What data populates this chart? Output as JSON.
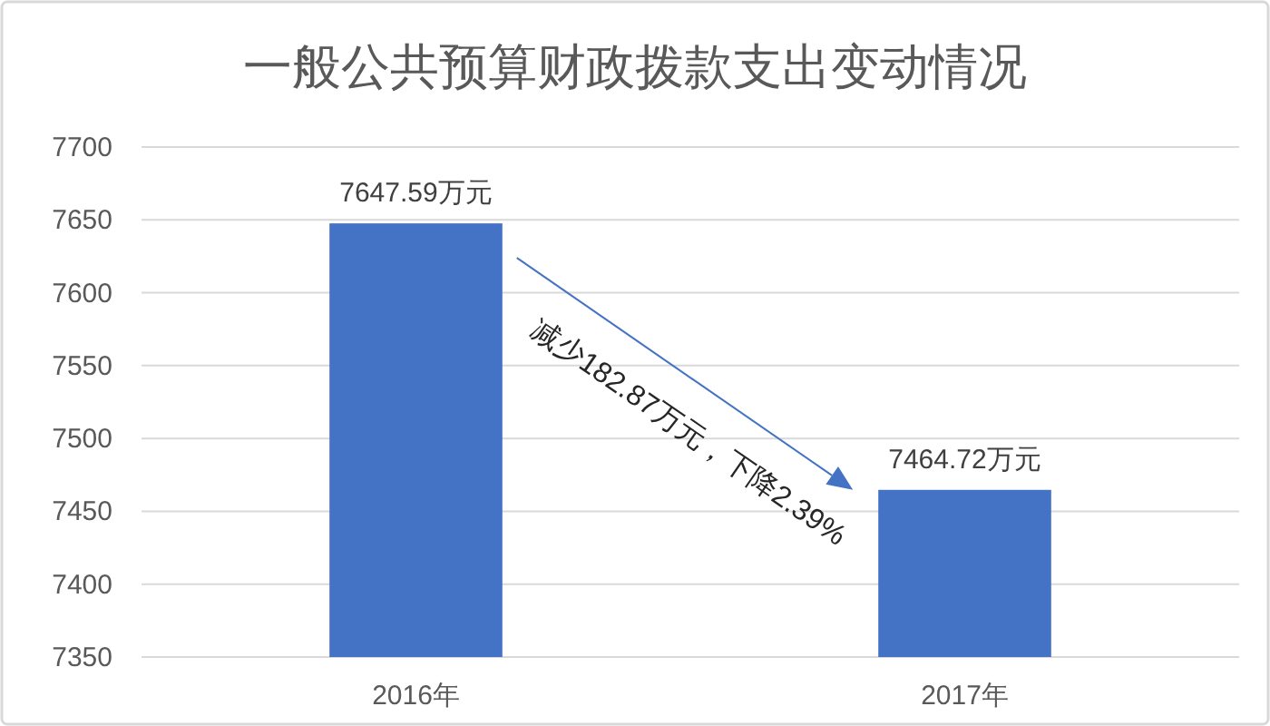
{
  "chart_data": {
    "type": "bar",
    "title": "一般公共预算财政拨款支出变动情况",
    "categories": [
      "2016年",
      "2017年"
    ],
    "values": [
      7647.59,
      7464.72
    ],
    "value_labels": [
      "7647.59万元",
      "7464.72万元"
    ],
    "color": "#4472c4",
    "ylim": [
      7350,
      7700
    ],
    "yticks": [
      7350,
      7400,
      7450,
      7500,
      7550,
      7600,
      7650,
      7700
    ],
    "grid": "y",
    "annotations": [
      "减少182.87万元，下降2.39%"
    ]
  }
}
